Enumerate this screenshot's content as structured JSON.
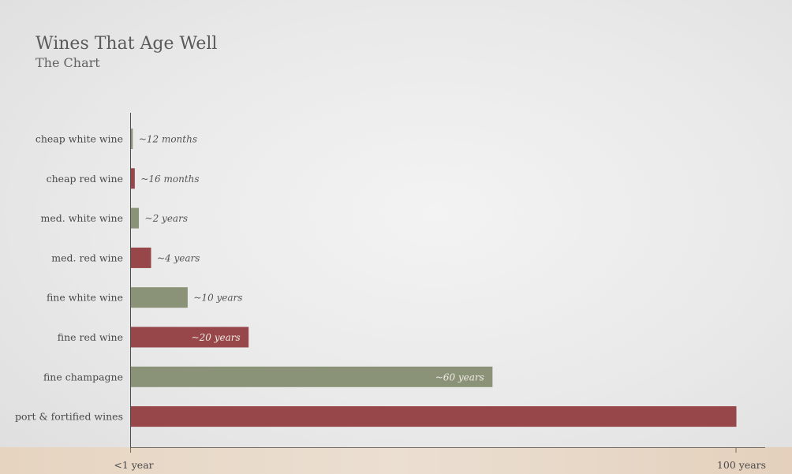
{
  "title": "Wines That Age Well",
  "subtitle": "The Chart",
  "colors": {
    "white_wine": "#8a9277",
    "red_wine": "#974649",
    "axis": "#4f4f4f"
  },
  "chart_data": {
    "type": "bar",
    "orientation": "horizontal",
    "title": "Wines That Age Well",
    "subtitle": "The Chart",
    "categories": [
      "cheap white wine",
      "cheap red wine",
      "med. white wine",
      "med. red wine",
      "fine white wine",
      "fine red wine",
      "fine champagne",
      "port & fortified wines"
    ],
    "values": [
      1,
      1.33,
      2,
      4,
      10,
      20,
      60,
      100
    ],
    "value_unit": "years",
    "value_labels": [
      "~12 months",
      "~16 months",
      "~2 years",
      "~4 years",
      "~10 years",
      "~20 years",
      "~60 years",
      ""
    ],
    "bar_colors": [
      "#8a9277",
      "#974649",
      "#8a9277",
      "#974649",
      "#8a9277",
      "#974649",
      "#8a9277",
      "#974649"
    ],
    "xlim": [
      0.7,
      100
    ],
    "x_tick_labels": [
      "<1 year",
      "100 years"
    ],
    "grid": false,
    "legend": "none"
  }
}
